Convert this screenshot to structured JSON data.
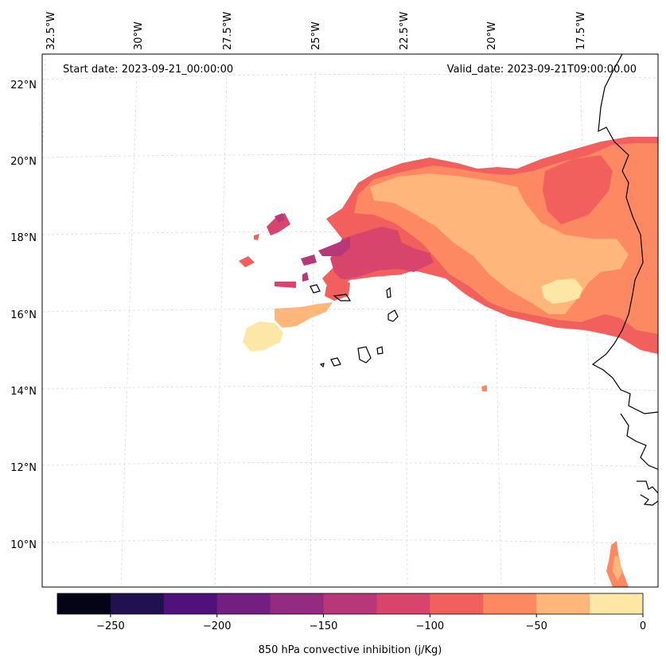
{
  "header": {
    "start_date": "Start date: 2023-09-21_00:00:00",
    "valid_date": "Valid_date: 2023-09-21T09:00:00.00"
  },
  "axes": {
    "lon_labels": [
      "32.5°W",
      "30°W",
      "27.5°W",
      "25°W",
      "22.5°W",
      "20°W",
      "17.5°W"
    ],
    "lat_labels": [
      "22°N",
      "20°N",
      "18°N",
      "16°N",
      "14°N",
      "12°N",
      "10°N"
    ]
  },
  "colorbar": {
    "label": "850 hPa convective inhibition (j/Kg)",
    "ticks": [
      "−250",
      "−200",
      "−150",
      "−100",
      "−50",
      "0"
    ],
    "range": [
      -275,
      0
    ],
    "levels": [
      -275,
      -250,
      -225,
      -200,
      -175,
      -150,
      -125,
      -100,
      -75,
      -50,
      -25,
      0
    ],
    "colors": [
      "#050416",
      "#21114e",
      "#4f127b",
      "#721f81",
      "#932b80",
      "#b73779",
      "#d8456c",
      "#f1605d",
      "#fc8961",
      "#feb67b",
      "#fde7a6"
    ]
  },
  "colors": {
    "coastline": "#000000",
    "grid": "#d0d0d0"
  }
}
